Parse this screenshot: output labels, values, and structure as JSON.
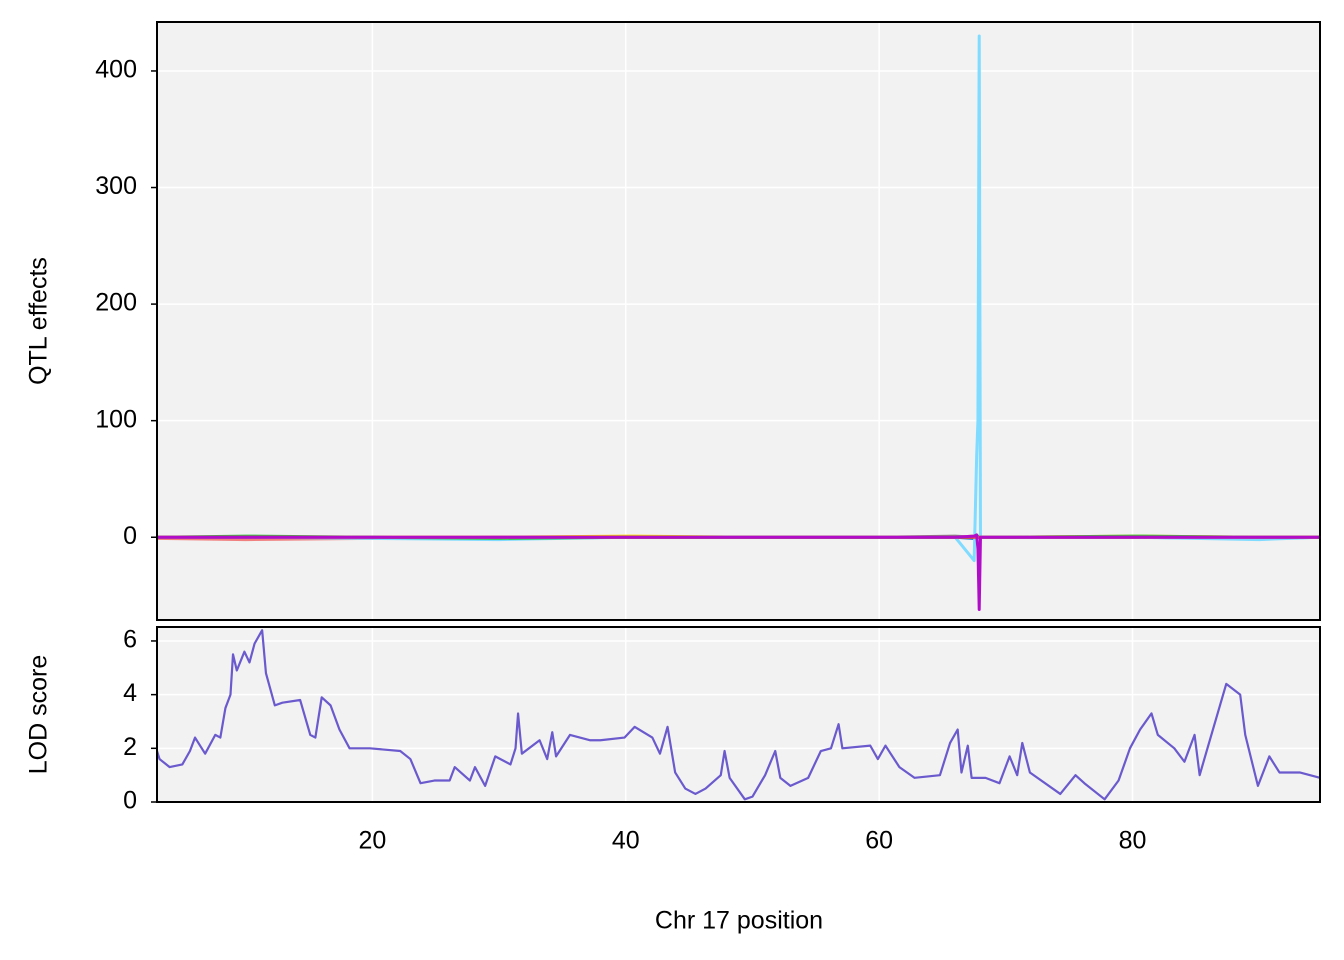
{
  "chart_data": [
    {
      "type": "line",
      "ylabel": "QTL effects",
      "x": [
        3,
        10,
        20,
        30,
        40,
        50,
        60,
        66,
        67.5,
        67.7,
        67.8,
        67.9,
        68.0,
        68.2,
        70,
        80,
        90,
        94.8
      ],
      "xlim": [
        3,
        94.8
      ],
      "xticks": [
        20,
        40,
        60,
        80
      ],
      "ylim": [
        -71,
        442
      ],
      "yticks": [
        0,
        100,
        200,
        300,
        400
      ],
      "grid": true,
      "series": [
        {
          "color": "#FFDC00",
          "values": [
            0,
            -1,
            0,
            0,
            1,
            0,
            0,
            0,
            1,
            2,
            0,
            0,
            0,
            0,
            0,
            1,
            0,
            0
          ]
        },
        {
          "color": "#888888",
          "values": [
            0,
            0,
            -1,
            0,
            0,
            0,
            0,
            1,
            0,
            -2,
            1,
            0,
            0,
            0,
            0,
            0,
            0,
            0
          ]
        },
        {
          "color": "#F08080",
          "values": [
            -1,
            -2,
            -1,
            0,
            0,
            0,
            0,
            0,
            1,
            0,
            0,
            0,
            0,
            0,
            0,
            0,
            0,
            0
          ]
        },
        {
          "color": "#0064C9",
          "values": [
            0,
            0,
            0,
            -1,
            0,
            0,
            0,
            0,
            -1,
            0,
            0,
            0,
            0,
            0,
            0,
            0,
            -1,
            0
          ]
        },
        {
          "color": "#7FDBFF",
          "values": [
            0,
            0,
            -1,
            -2,
            0,
            0,
            0,
            0,
            -20,
            70,
            100,
            430,
            0,
            0,
            0,
            0,
            -2,
            0
          ]
        },
        {
          "color": "#2ECC40",
          "values": [
            0,
            1,
            0,
            -1,
            0,
            0,
            0,
            0,
            0,
            1,
            0,
            0,
            0,
            0,
            0,
            1,
            0,
            0
          ]
        },
        {
          "color": "#FF4136",
          "values": [
            0,
            0,
            0,
            0,
            0,
            0,
            0,
            0,
            0,
            0,
            0,
            0,
            0,
            0,
            0,
            0,
            0,
            0
          ]
        },
        {
          "color": "#B10DC9",
          "values": [
            0,
            0,
            0,
            0,
            0,
            0,
            0,
            0,
            1,
            2,
            -10,
            -62,
            0,
            0,
            0,
            0,
            0,
            0
          ]
        }
      ]
    },
    {
      "type": "line",
      "ylabel": "LOD score",
      "xlabel": "Chr 17 position",
      "color": "#6A5ACD",
      "x": [
        3.0,
        3.2,
        4.0,
        5.0,
        5.6,
        6.0,
        6.8,
        7.6,
        8.0,
        8.4,
        8.8,
        9.0,
        9.3,
        9.9,
        10.3,
        10.7,
        11.3,
        11.6,
        12.3,
        12.9,
        14.3,
        15.1,
        15.5,
        16.0,
        16.7,
        17.4,
        18.2,
        19.8,
        22.2,
        23.0,
        23.8,
        24.9,
        26.1,
        26.5,
        27.7,
        28.1,
        28.9,
        29.7,
        30.9,
        31.3,
        31.5,
        31.8,
        33.2,
        33.8,
        34.2,
        34.5,
        35.6,
        37.2,
        38.0,
        39.9,
        40.7,
        42.1,
        42.7,
        43.3,
        43.9,
        44.7,
        45.5,
        46.3,
        47.5,
        47.8,
        48.2,
        49.4,
        50.0,
        51.0,
        51.8,
        52.2,
        53.0,
        54.4,
        55.4,
        56.2,
        56.8,
        57.1,
        59.3,
        59.9,
        60.5,
        61.6,
        62.8,
        64.8,
        65.6,
        66.2,
        66.5,
        67.0,
        67.3,
        68.4,
        69.5,
        70.3,
        70.9,
        71.3,
        71.9,
        74.3,
        75.5,
        76.2,
        77.8,
        78.9,
        79.8,
        80.6,
        81.5,
        82.0,
        83.3,
        84.1,
        84.9,
        85.3,
        86.1,
        87.4,
        88.5,
        88.9,
        89.9,
        90.8,
        91.6,
        93.2,
        94.8
      ],
      "values": [
        1.9,
        1.6,
        1.3,
        1.4,
        1.9,
        2.4,
        1.8,
        2.5,
        2.4,
        3.5,
        4.0,
        5.5,
        4.9,
        5.6,
        5.2,
        5.9,
        6.4,
        4.8,
        3.6,
        3.7,
        3.8,
        2.5,
        2.4,
        3.9,
        3.6,
        2.7,
        2.0,
        2.0,
        1.9,
        1.6,
        0.7,
        0.8,
        0.8,
        1.3,
        0.8,
        1.3,
        0.6,
        1.7,
        1.4,
        2.0,
        3.3,
        1.8,
        2.3,
        1.6,
        2.6,
        1.7,
        2.5,
        2.3,
        2.3,
        2.4,
        2.8,
        2.4,
        1.8,
        2.8,
        1.1,
        0.5,
        0.3,
        0.5,
        1.0,
        1.9,
        0.9,
        0.1,
        0.2,
        1.0,
        1.9,
        0.9,
        0.6,
        0.9,
        1.9,
        2.0,
        2.9,
        2.0,
        2.1,
        1.6,
        2.1,
        1.3,
        0.9,
        1.0,
        2.2,
        2.7,
        1.1,
        2.1,
        0.9,
        0.9,
        0.7,
        1.7,
        1.0,
        2.2,
        1.1,
        0.3,
        1.0,
        0.7,
        0.1,
        0.8,
        2.0,
        2.7,
        3.3,
        2.5,
        2.0,
        1.5,
        2.5,
        1.0,
        2.3,
        4.4,
        4.0,
        2.5,
        0.6,
        1.7,
        1.1,
        1.1,
        0.9
      ],
      "xlim": [
        3,
        94.8
      ],
      "xticks": [
        20,
        40,
        60,
        80
      ],
      "ylim": [
        0,
        6.52
      ],
      "yticks": [
        0,
        2,
        4,
        6
      ],
      "grid": true
    }
  ]
}
